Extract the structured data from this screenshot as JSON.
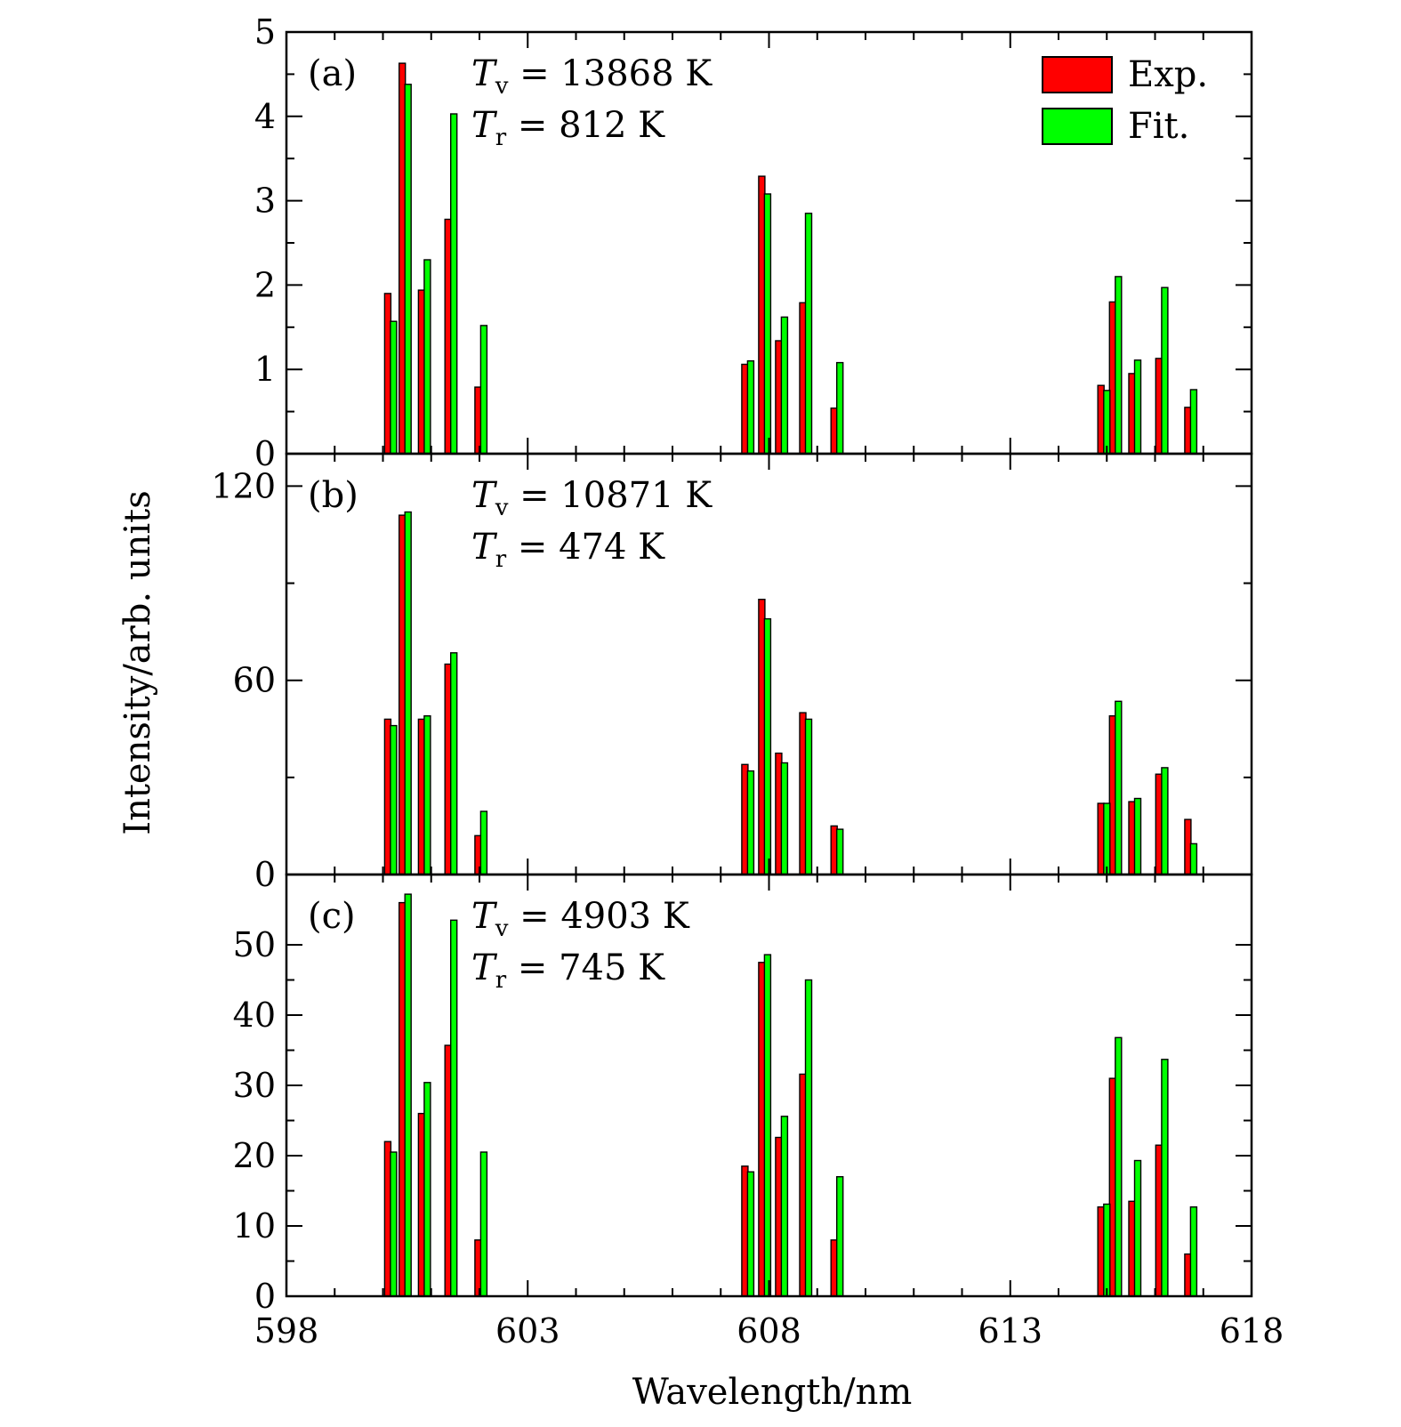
{
  "chart_data": {
    "type": "bar",
    "x_axis_label": "Wavelength/nm",
    "y_axis_label": "Intensity/arb. units",
    "xlim": [
      598,
      618
    ],
    "x_ticks": [
      "598",
      "603",
      "608",
      "613",
      "618"
    ],
    "legend": {
      "position": "top-right",
      "entries": [
        {
          "label": "Exp.",
          "color": "#ff0000"
        },
        {
          "label": "Fit.",
          "color": "#00ff00"
        }
      ]
    },
    "panels": [
      {
        "label": "(a)",
        "tv_value": "13868 K",
        "tr_value": "812 K",
        "ylim": [
          0,
          5
        ],
        "y_ticks": [
          "0",
          "1",
          "2",
          "3",
          "4",
          "5"
        ],
        "exp": [
          {
            "x": 600.1,
            "y": 1.9
          },
          {
            "x": 600.4,
            "y": 4.63
          },
          {
            "x": 600.8,
            "y": 1.94
          },
          {
            "x": 601.35,
            "y": 2.78
          },
          {
            "x": 601.97,
            "y": 0.79
          },
          {
            "x": 607.5,
            "y": 1.06
          },
          {
            "x": 607.85,
            "y": 3.29
          },
          {
            "x": 608.2,
            "y": 1.34
          },
          {
            "x": 608.7,
            "y": 1.79
          },
          {
            "x": 609.35,
            "y": 0.54
          },
          {
            "x": 614.88,
            "y": 0.81
          },
          {
            "x": 615.12,
            "y": 1.8
          },
          {
            "x": 615.52,
            "y": 0.95
          },
          {
            "x": 616.08,
            "y": 1.13
          },
          {
            "x": 616.68,
            "y": 0.55
          }
        ],
        "fit": [
          {
            "x": 600.22,
            "y": 1.57
          },
          {
            "x": 600.52,
            "y": 4.38
          },
          {
            "x": 600.92,
            "y": 2.3
          },
          {
            "x": 601.47,
            "y": 4.03
          },
          {
            "x": 602.09,
            "y": 1.52
          },
          {
            "x": 607.62,
            "y": 1.1
          },
          {
            "x": 607.97,
            "y": 3.08
          },
          {
            "x": 608.32,
            "y": 1.62
          },
          {
            "x": 608.82,
            "y": 2.85
          },
          {
            "x": 609.47,
            "y": 1.08
          },
          {
            "x": 615.0,
            "y": 0.75
          },
          {
            "x": 615.24,
            "y": 2.1
          },
          {
            "x": 615.64,
            "y": 1.11
          },
          {
            "x": 616.2,
            "y": 1.97
          },
          {
            "x": 616.8,
            "y": 0.76
          }
        ]
      },
      {
        "label": "(b)",
        "tv_value": "10871 K",
        "tr_value": "474 K",
        "ylim": [
          0,
          130
        ],
        "y_ticks": [
          "0",
          "60",
          "120"
        ],
        "y_tick_values": [
          0,
          60,
          120
        ],
        "exp": [
          {
            "x": 600.1,
            "y": 48
          },
          {
            "x": 600.4,
            "y": 111
          },
          {
            "x": 600.8,
            "y": 48
          },
          {
            "x": 601.35,
            "y": 65
          },
          {
            "x": 601.97,
            "y": 12
          },
          {
            "x": 607.5,
            "y": 34
          },
          {
            "x": 607.85,
            "y": 85
          },
          {
            "x": 608.2,
            "y": 37.5
          },
          {
            "x": 608.7,
            "y": 50
          },
          {
            "x": 609.35,
            "y": 15
          },
          {
            "x": 614.88,
            "y": 22
          },
          {
            "x": 615.12,
            "y": 49
          },
          {
            "x": 615.52,
            "y": 22.5
          },
          {
            "x": 616.08,
            "y": 31
          },
          {
            "x": 616.68,
            "y": 17
          }
        ],
        "fit": [
          {
            "x": 600.22,
            "y": 46
          },
          {
            "x": 600.52,
            "y": 112
          },
          {
            "x": 600.92,
            "y": 49
          },
          {
            "x": 601.47,
            "y": 68.5
          },
          {
            "x": 602.09,
            "y": 19.5
          },
          {
            "x": 607.62,
            "y": 32
          },
          {
            "x": 607.97,
            "y": 79
          },
          {
            "x": 608.32,
            "y": 34.5
          },
          {
            "x": 608.82,
            "y": 48
          },
          {
            "x": 609.47,
            "y": 14
          },
          {
            "x": 615.0,
            "y": 22
          },
          {
            "x": 615.24,
            "y": 53.5
          },
          {
            "x": 615.64,
            "y": 23.5
          },
          {
            "x": 616.2,
            "y": 33
          },
          {
            "x": 616.8,
            "y": 9.5
          }
        ]
      },
      {
        "label": "(c)",
        "tv_value": "4903 K",
        "tr_value": "745 K",
        "ylim": [
          0,
          60
        ],
        "y_ticks": [
          "0",
          "10",
          "20",
          "30",
          "40",
          "50"
        ],
        "y_tick_values": [
          0,
          10,
          20,
          30,
          40,
          50
        ],
        "exp": [
          {
            "x": 600.1,
            "y": 22
          },
          {
            "x": 600.4,
            "y": 56
          },
          {
            "x": 600.8,
            "y": 26
          },
          {
            "x": 601.35,
            "y": 35.7
          },
          {
            "x": 601.97,
            "y": 8
          },
          {
            "x": 607.5,
            "y": 18.5
          },
          {
            "x": 607.85,
            "y": 47.5
          },
          {
            "x": 608.2,
            "y": 22.6
          },
          {
            "x": 608.7,
            "y": 31.6
          },
          {
            "x": 609.35,
            "y": 8
          },
          {
            "x": 614.88,
            "y": 12.7
          },
          {
            "x": 615.12,
            "y": 31
          },
          {
            "x": 615.52,
            "y": 13.5
          },
          {
            "x": 616.08,
            "y": 21.5
          },
          {
            "x": 616.68,
            "y": 6
          }
        ],
        "fit": [
          {
            "x": 600.22,
            "y": 20.5
          },
          {
            "x": 600.52,
            "y": 57.2
          },
          {
            "x": 600.92,
            "y": 30.4
          },
          {
            "x": 601.47,
            "y": 53.5
          },
          {
            "x": 602.09,
            "y": 20.5
          },
          {
            "x": 607.62,
            "y": 17.7
          },
          {
            "x": 607.97,
            "y": 48.6
          },
          {
            "x": 608.32,
            "y": 25.6
          },
          {
            "x": 608.82,
            "y": 45
          },
          {
            "x": 609.47,
            "y": 17
          },
          {
            "x": 615.0,
            "y": 13.1
          },
          {
            "x": 615.24,
            "y": 36.8
          },
          {
            "x": 615.64,
            "y": 19.3
          },
          {
            "x": 616.2,
            "y": 33.7
          },
          {
            "x": 616.8,
            "y": 12.7
          }
        ]
      }
    ]
  }
}
